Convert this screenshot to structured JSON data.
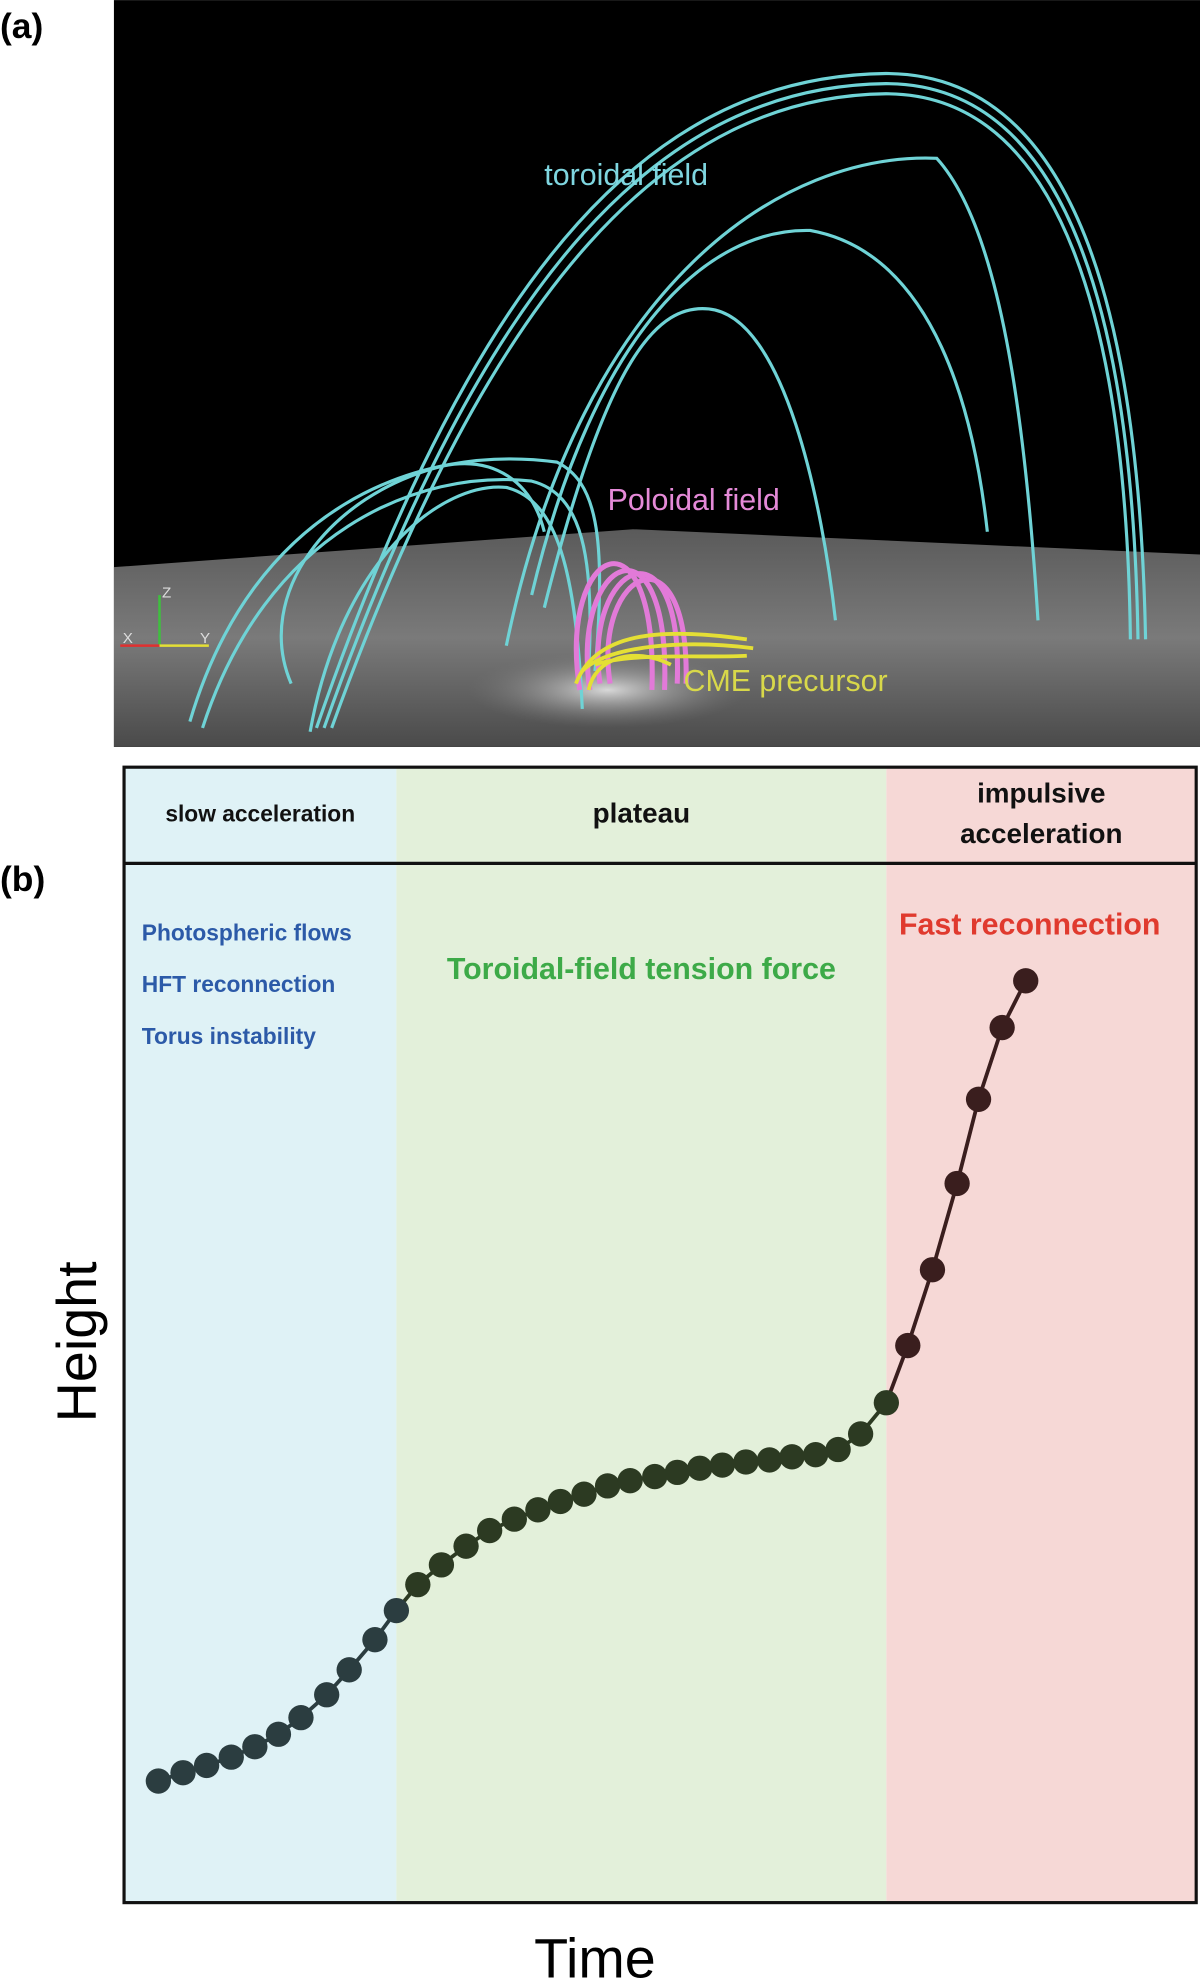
{
  "panel_a": {
    "label": "(a)",
    "toroidal": "toroidal field",
    "poloidal": "Poloidal field",
    "precursor": "CME precursor",
    "axis_x": "X",
    "axis_y": "Y",
    "axis_z": "Z"
  },
  "chart_data": {
    "type": "line",
    "panel_label": "(b)",
    "x_label": "Time",
    "y_label": "Height",
    "xlim": [
      0,
      100
    ],
    "ylim": [
      0,
      100
    ],
    "phases": [
      {
        "range": [
          0,
          25.4
        ],
        "color": "#dff2f6",
        "header": [
          "slow acceleration"
        ],
        "notes": [
          "Photospheric flows",
          "HFT reconnection",
          "Torus instability"
        ],
        "note_color": "#2c5aa8"
      },
      {
        "range": [
          25.4,
          71.1
        ],
        "color": "#e3f0da",
        "header": [
          "plateau"
        ],
        "notes": [
          "Toroidal-field tension force"
        ],
        "note_color": "#3daa48"
      },
      {
        "range": [
          71.1,
          100
        ],
        "color": "#f6d8d6",
        "header": [
          "impulsive",
          "acceleration"
        ],
        "notes": [
          "Fast reconnection"
        ],
        "note_color": "#e03a2e"
      }
    ],
    "series": [
      {
        "color": "#2b3d40",
        "x": [
          3.2,
          5.5,
          7.7,
          10.0,
          12.2,
          14.4,
          16.5,
          18.9,
          21.0,
          23.4,
          25.4
        ],
        "values": [
          11.7,
          12.5,
          13.2,
          14.0,
          15.0,
          16.2,
          17.8,
          20.0,
          22.4,
          25.3,
          28.1
        ]
      },
      {
        "color": "#2c3a22",
        "x": [
          27.4,
          29.6,
          31.9,
          34.1,
          36.4,
          38.6,
          40.7,
          42.9,
          45.1,
          47.2,
          49.5,
          51.6,
          53.7,
          55.8,
          58.0,
          60.2,
          62.3,
          64.5,
          66.6,
          68.7,
          71.1
        ],
        "values": [
          30.6,
          32.5,
          34.3,
          35.8,
          36.9,
          37.8,
          38.6,
          39.3,
          40.1,
          40.6,
          41.0,
          41.4,
          41.8,
          42.1,
          42.4,
          42.6,
          42.9,
          43.1,
          43.6,
          45.1,
          48.1
        ]
      },
      {
        "color": "#3a1e1e",
        "x": [
          73.1,
          75.4,
          77.7,
          79.7,
          81.9,
          84.1
        ],
        "values": [
          53.6,
          60.9,
          69.2,
          77.3,
          84.2,
          88.7
        ]
      }
    ]
  }
}
